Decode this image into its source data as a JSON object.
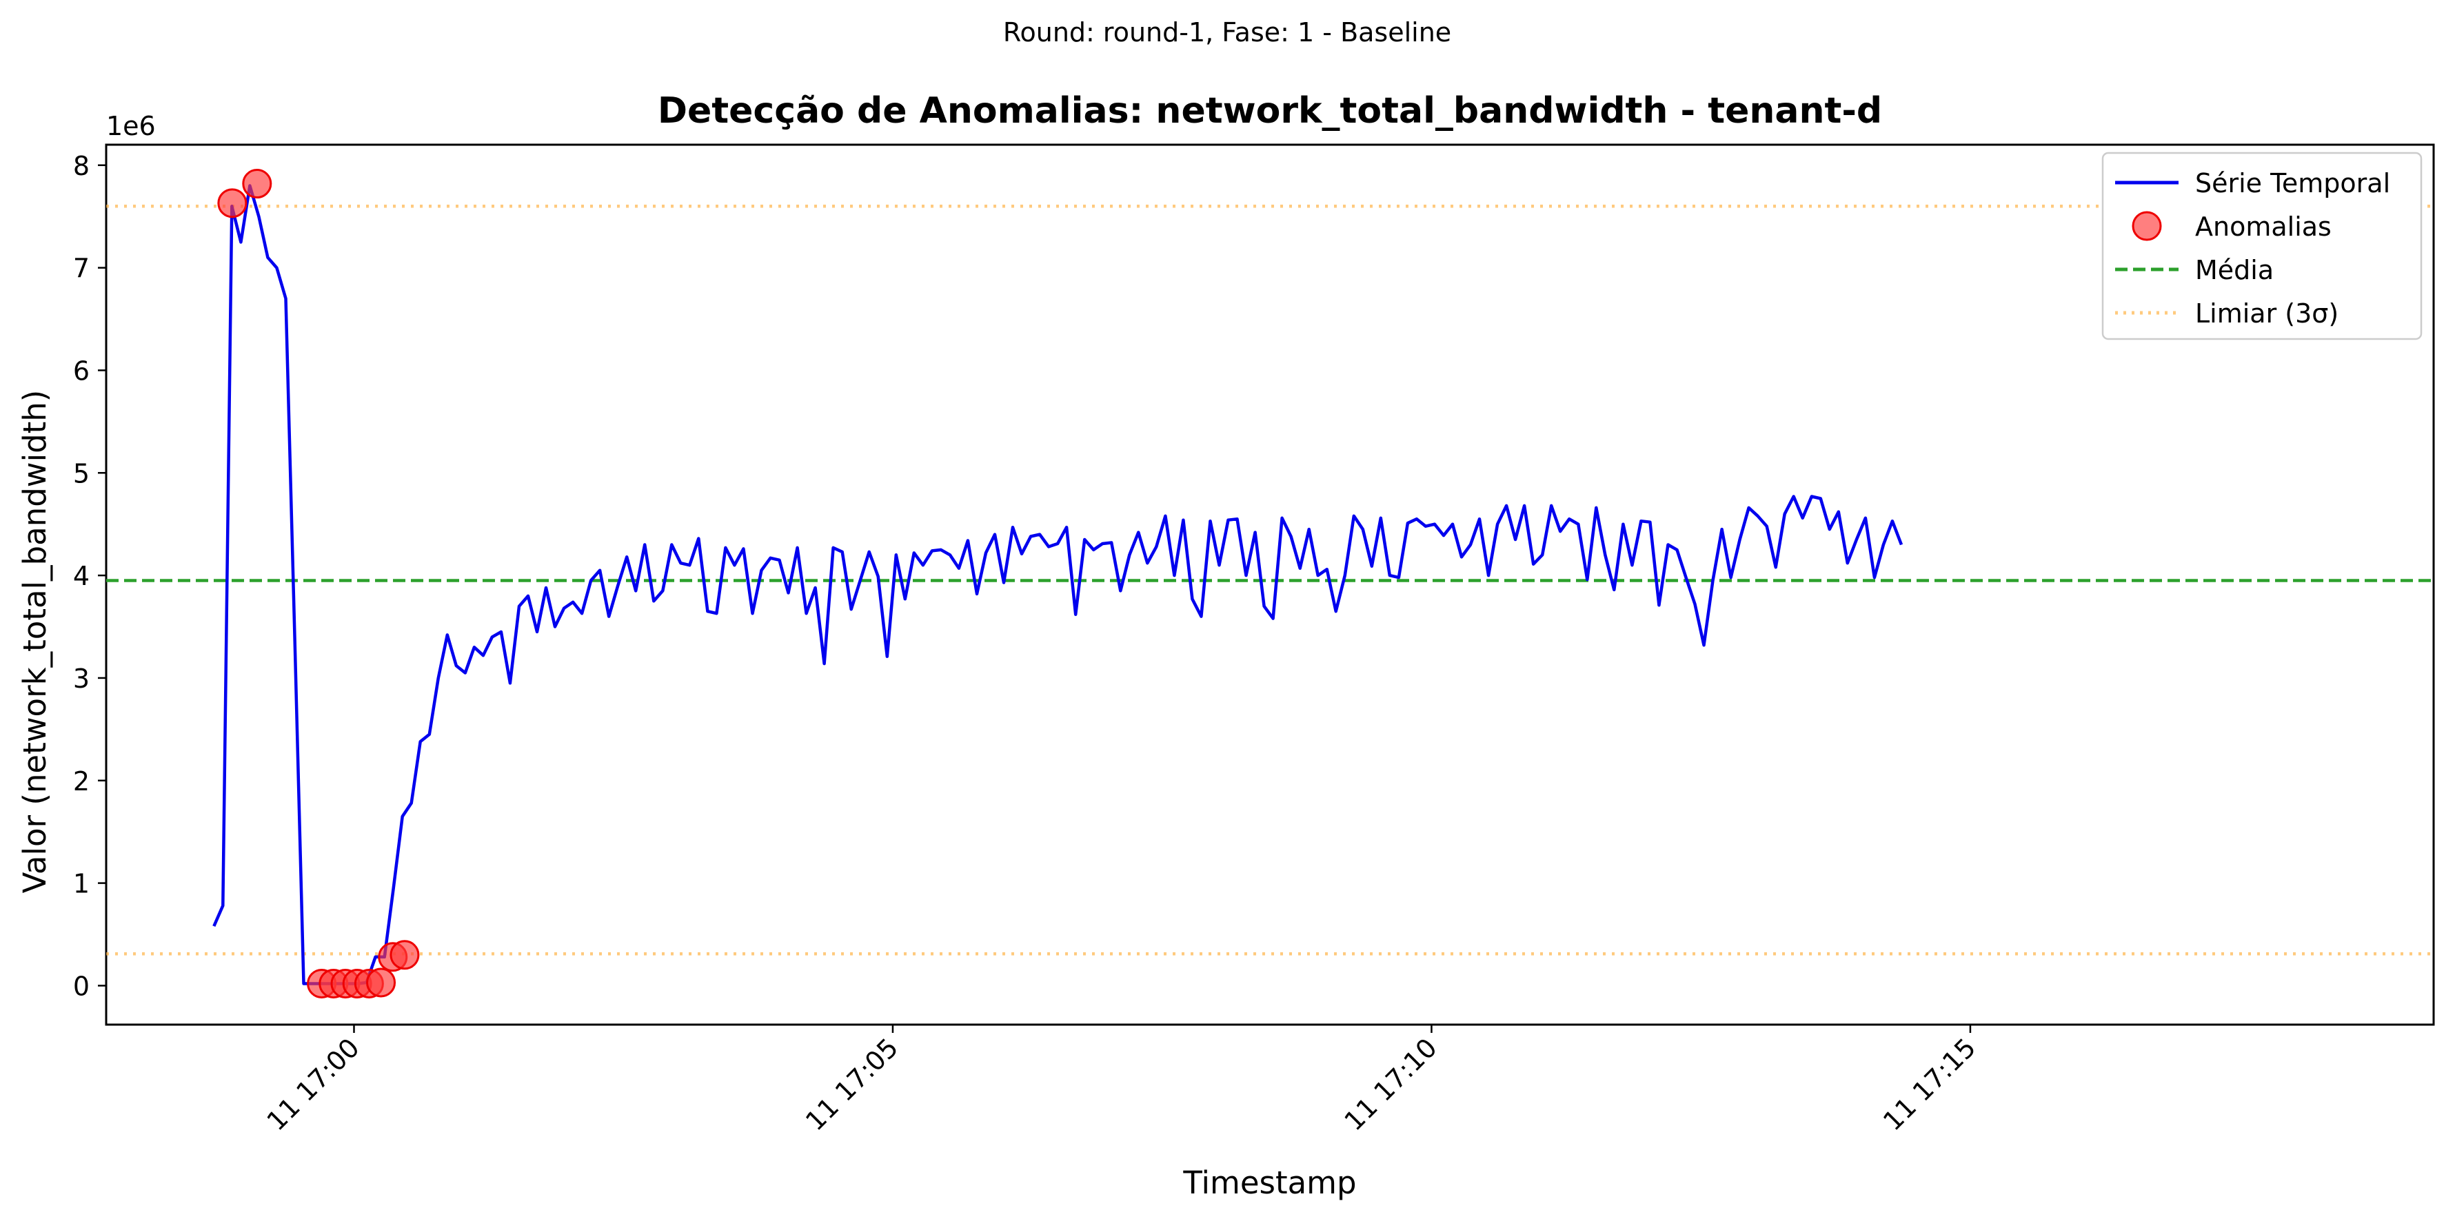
{
  "chart_data": {
    "type": "line",
    "suptitle": "Round: round-1, Fase: 1 - Baseline",
    "title": "Detecção de Anomalias: network_total_bandwidth - tenant-d",
    "xlabel": "Timestamp",
    "ylabel": "Valor (network_total_bandwidth)",
    "y_offset_label": "1e6",
    "ylim": [
      -0.38,
      8.2
    ],
    "xlim": [
      -2.3,
      19.3
    ],
    "y_ticks": [
      0,
      1,
      2,
      3,
      4,
      5,
      6,
      7,
      8
    ],
    "x_ticks": [
      {
        "value": 0,
        "label": "11 17:00"
      },
      {
        "value": 5,
        "label": "11 17:05"
      },
      {
        "value": 10,
        "label": "11 17:10"
      },
      {
        "value": 15,
        "label": "11 17:15"
      }
    ],
    "x_unit": "minutes after 11 17:00",
    "y_unit": "1e6",
    "mean": 3.95,
    "threshold_upper": 7.6,
    "threshold_lower": 0.31,
    "legend": {
      "placement": "top-right",
      "entries": [
        {
          "label": "Série Temporal",
          "style": "line"
        },
        {
          "label": "Anomalias",
          "style": "marker"
        },
        {
          "label": "Média",
          "style": "dashed"
        },
        {
          "label": "Limiar (3σ)",
          "style": "dotted"
        }
      ]
    },
    "colors": {
      "series": "#0000ee",
      "anomaly": "#ff3b3b",
      "mean": "#2ca02c",
      "threshold": "#ffb347"
    },
    "series": [
      {
        "name": "Série Temporal",
        "x_start": -1.3,
        "x_step": 0.0833,
        "values": [
          0.58,
          0.78,
          7.6,
          7.25,
          7.8,
          7.5,
          7.1,
          7.0,
          6.7,
          3.4,
          0.02,
          0.02,
          0.02,
          0.02,
          0.02,
          0.02,
          0.02,
          0.03,
          0.28,
          0.28,
          0.95,
          1.65,
          1.78,
          2.38,
          2.45,
          3.0,
          3.42,
          3.12,
          3.05,
          3.3,
          3.22,
          3.4,
          3.45,
          2.95,
          3.7,
          3.8,
          3.45,
          3.88,
          3.5,
          3.68,
          3.74,
          3.63,
          3.95,
          4.05,
          3.6,
          3.9,
          4.18,
          3.85,
          4.3,
          3.75,
          3.85,
          4.3,
          4.12,
          4.1,
          4.36,
          3.65,
          3.63,
          4.27,
          4.1,
          4.26,
          3.63,
          4.05,
          4.17,
          4.15,
          3.83,
          4.27,
          3.63,
          3.88,
          3.14,
          4.27,
          4.23,
          3.67,
          3.95,
          4.23,
          3.99,
          3.21,
          4.2,
          3.77,
          4.22,
          4.1,
          4.24,
          4.25,
          4.2,
          4.07,
          4.34,
          3.82,
          4.22,
          4.4,
          3.93,
          4.47,
          4.21,
          4.38,
          4.4,
          4.28,
          4.31,
          4.47,
          3.62,
          4.35,
          4.25,
          4.31,
          4.32,
          3.85,
          4.2,
          4.42,
          4.12,
          4.28,
          4.58,
          4.0,
          4.54,
          3.77,
          3.6,
          4.53,
          4.1,
          4.54,
          4.55,
          4.0,
          4.42,
          3.7,
          3.58,
          4.56,
          4.38,
          4.07,
          4.45,
          4.0,
          4.06,
          3.65,
          4.0,
          4.58,
          4.45,
          4.09,
          4.56,
          4.0,
          3.98,
          4.51,
          4.55,
          4.48,
          4.5,
          4.39,
          4.5,
          4.18,
          4.3,
          4.55,
          4.0,
          4.5,
          4.68,
          4.35,
          4.68,
          4.11,
          4.2,
          4.68,
          4.43,
          4.55,
          4.5,
          3.96,
          4.66,
          4.2,
          3.86,
          4.5,
          4.1,
          4.53,
          4.52,
          3.71,
          4.3,
          4.25,
          3.98,
          3.72,
          3.32,
          3.95,
          4.45,
          3.98,
          4.35,
          4.66,
          4.58,
          4.48,
          4.08,
          4.6,
          4.77,
          4.56,
          4.77,
          4.75,
          4.45,
          4.62,
          4.12,
          4.35,
          4.56,
          3.98,
          4.3,
          4.53,
          4.3
        ]
      }
    ],
    "anomalies": [
      {
        "x": -1.13,
        "y": 7.63
      },
      {
        "x": -0.9,
        "y": 7.82
      },
      {
        "x": -0.3,
        "y": 0.02
      },
      {
        "x": -0.19,
        "y": 0.02
      },
      {
        "x": -0.08,
        "y": 0.02
      },
      {
        "x": 0.03,
        "y": 0.02
      },
      {
        "x": 0.14,
        "y": 0.02
      },
      {
        "x": 0.25,
        "y": 0.03
      },
      {
        "x": 0.36,
        "y": 0.28
      },
      {
        "x": 0.47,
        "y": 0.3
      }
    ]
  }
}
